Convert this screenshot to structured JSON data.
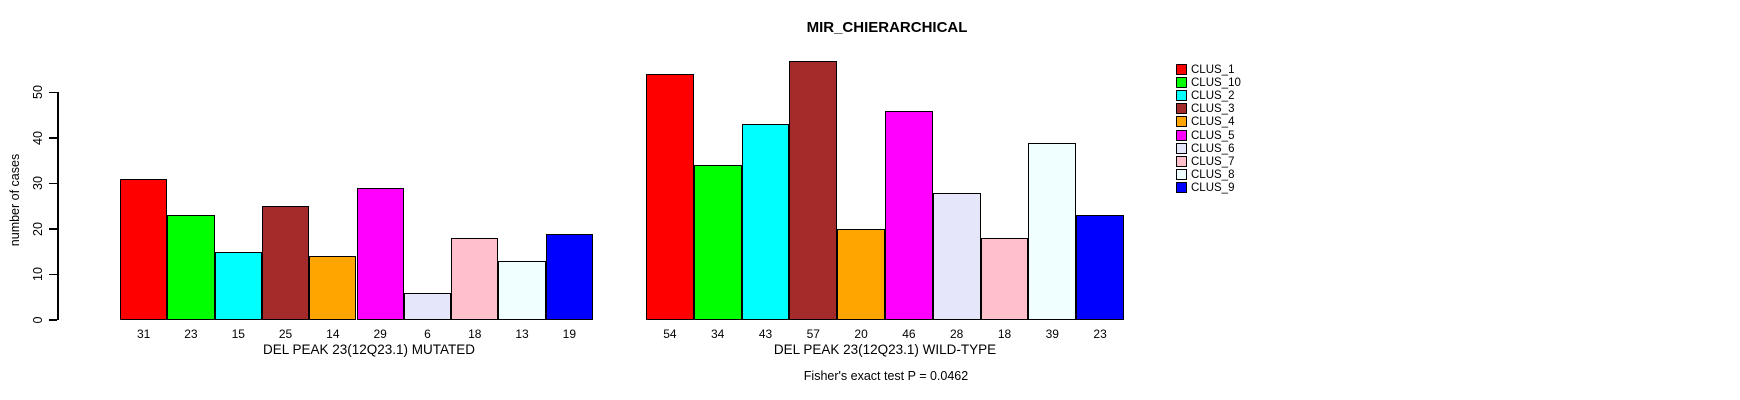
{
  "chart_data": {
    "type": "bar",
    "title": "MIR_CHIERARCHICAL",
    "ylabel": "number of cases",
    "yticks": [
      0,
      10,
      20,
      30,
      40,
      50
    ],
    "ylim": [
      0,
      57
    ],
    "grid": false,
    "legend_position": "right",
    "bar_value_labels_shown": true,
    "series": [
      {
        "name": "CLUS_1",
        "color": "#FF0000"
      },
      {
        "name": "CLUS_10",
        "color": "#00FF00"
      },
      {
        "name": "CLUS_2",
        "color": "#00FFFF"
      },
      {
        "name": "CLUS_3",
        "color": "#A52A2A"
      },
      {
        "name": "CLUS_4",
        "color": "#FFA500"
      },
      {
        "name": "CLUS_5",
        "color": "#FF00FF"
      },
      {
        "name": "CLUS_6",
        "color": "#E6E6FA"
      },
      {
        "name": "CLUS_7",
        "color": "#FFC0CB"
      },
      {
        "name": "CLUS_8",
        "color": "#F0FFFF"
      },
      {
        "name": "CLUS_9",
        "color": "#0000FF"
      }
    ],
    "groups": [
      {
        "xlabel": "DEL PEAK 23(12Q23.1) MUTATED",
        "values": [
          31,
          23,
          15,
          25,
          14,
          29,
          6,
          18,
          13,
          19
        ]
      },
      {
        "xlabel": "DEL PEAK 23(12Q23.1) WILD-TYPE",
        "values": [
          54,
          34,
          43,
          57,
          20,
          46,
          28,
          18,
          39,
          23
        ]
      }
    ],
    "annotation": "Fisher's exact test P = 0.0462"
  }
}
